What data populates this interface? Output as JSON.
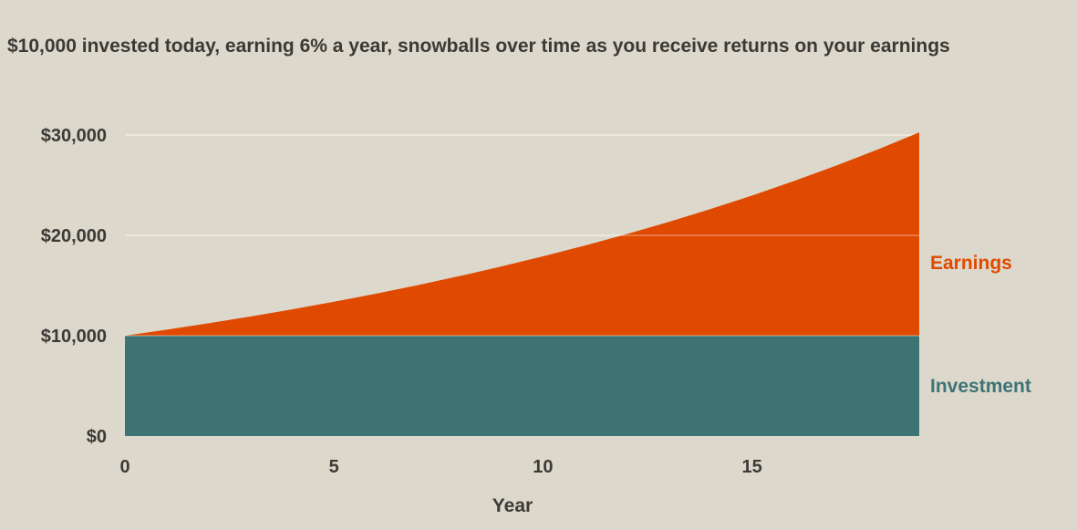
{
  "chart_data": {
    "type": "area",
    "title": "$10,000 invested today, earning 6% a year, snowballs over time as you receive returns on your earnings",
    "xlabel": "Year",
    "ylabel": "",
    "x": [
      0,
      1,
      2,
      3,
      4,
      5,
      6,
      7,
      8,
      9,
      10,
      11,
      12,
      13,
      14,
      15,
      16,
      17,
      18,
      19
    ],
    "xlim": [
      0,
      19
    ],
    "ylim": [
      0,
      30000
    ],
    "x_ticks": [
      0,
      5,
      10,
      15
    ],
    "x_tick_labels": [
      "0",
      "5",
      "10",
      "15"
    ],
    "y_ticks": [
      0,
      10000,
      20000,
      30000
    ],
    "y_tick_labels": [
      "$0",
      "$10,000",
      "$20,000",
      "$30,000"
    ],
    "stacked": true,
    "grid": "horizontal",
    "legend_placement": "right",
    "series": [
      {
        "name": "Investment",
        "color": "#3e7373",
        "values": [
          10000,
          10000,
          10000,
          10000,
          10000,
          10000,
          10000,
          10000,
          10000,
          10000,
          10000,
          10000,
          10000,
          10000,
          10000,
          10000,
          10000,
          10000,
          10000,
          10000
        ]
      },
      {
        "name": "Earnings",
        "color": "#e04a00",
        "values": [
          0,
          600,
          1236,
          1910,
          2625,
          3382,
          4185,
          5036,
          5938,
          6895,
          7908,
          8983,
          10122,
          11329,
          12609,
          13966,
          15404,
          16928,
          18543,
          20256
        ]
      }
    ]
  }
}
